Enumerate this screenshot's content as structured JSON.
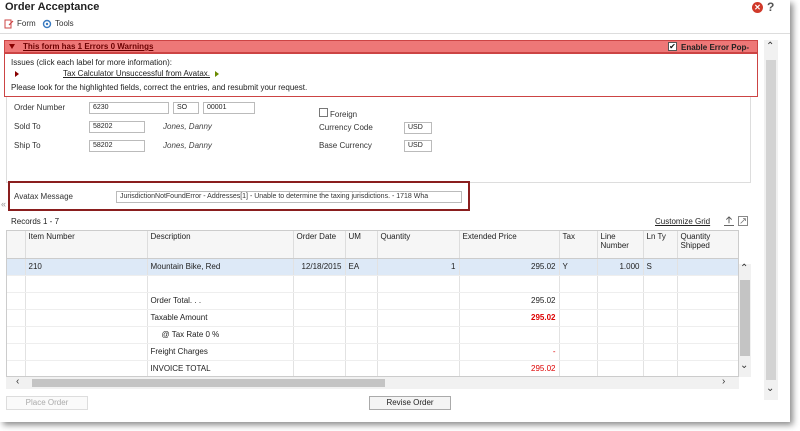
{
  "window": {
    "title": "Order Acceptance",
    "help": "?",
    "close": "✕"
  },
  "menu": [
    {
      "label": "Form",
      "icon": "form-icon"
    },
    {
      "label": "Tools",
      "icon": "tools-icon"
    }
  ],
  "error_banner": {
    "message": "This form has 1 Errors 0 Warnings",
    "checkbox_label": "Enable Error Pop-ups",
    "checked": "✔"
  },
  "issues": {
    "header": "Issues (click each label for more information):",
    "link": "Tax Calculator Unsuccessful from Avatax.",
    "note": "Please look for the highlighted fields, correct the entries, and resubmit your request."
  },
  "form": {
    "order_number_label": "Order Number",
    "order_number": "6230",
    "order_type": "SO",
    "order_company": "00001",
    "sold_to_label": "Sold To",
    "sold_to": "58202",
    "sold_to_name": "Jones, Danny",
    "ship_to_label": "Ship To",
    "ship_to": "58202",
    "ship_to_name": "Jones, Danny",
    "foreign_label": "Foreign",
    "currency_code_label": "Currency Code",
    "currency_code": "USD",
    "base_currency_label": "Base Currency",
    "base_currency": "USD"
  },
  "avatax": {
    "label": "Avatax Message",
    "value": "JurisdictionNotFoundError - Addresses[1] - Unable to determine the taxing jurisdictions. - 1718 Wha"
  },
  "grid": {
    "records": "Records 1 - 7",
    "customize": "Customize Grid",
    "columns": [
      "",
      "Item Number",
      "Description",
      "Order Date",
      "UM",
      "Quantity",
      "Extended Price",
      "Tax",
      "Line Number",
      "Ln Ty",
      "Quantity Shipped"
    ],
    "rows": [
      [
        "",
        "210",
        "Mountain Bike, Red",
        "12/18/2015",
        "EA",
        "1",
        "295.02",
        "Y",
        "1.000",
        "S",
        ""
      ],
      [
        "",
        "",
        "",
        "",
        "",
        "",
        "",
        "",
        "",
        "",
        ""
      ],
      [
        "",
        "",
        "Order Total. . .",
        "",
        "",
        "",
        "295.02",
        "",
        "",
        "",
        ""
      ],
      [
        "",
        "",
        "Taxable Amount",
        "",
        "",
        "",
        "295.02",
        "",
        "",
        "",
        ""
      ],
      [
        "",
        "",
        "@ Tax Rate 0 %",
        "",
        "",
        "",
        "",
        "",
        "",
        "",
        ""
      ],
      [
        "",
        "",
        "Freight Charges",
        "",
        "",
        "",
        "-",
        "",
        "",
        "",
        ""
      ],
      [
        "",
        "",
        "INVOICE TOTAL",
        "",
        "",
        "",
        "295.02",
        "",
        "",
        "",
        ""
      ]
    ]
  },
  "buttons": {
    "place_order": "Place Order",
    "revise_order": "Revise Order"
  },
  "colors": {
    "error_red": "#ee7777",
    "selected_row": "#dde9f7",
    "highlight_box": "#8a1e1e"
  }
}
